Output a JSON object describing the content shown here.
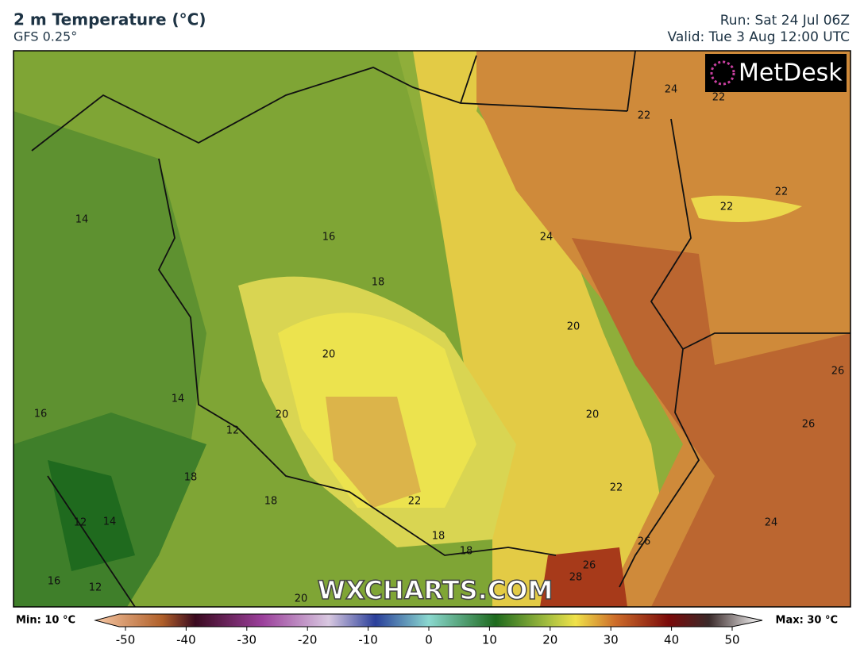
{
  "header": {
    "title": "2 m Temperature (°C)",
    "subtitle": "GFS 0.25°",
    "run": "Run: Sat 24 Jul 06Z",
    "valid": "Valid: Tue 3 Aug 12:00 UTC"
  },
  "map": {
    "logo": "MetDesk",
    "watermark": "WXCHARTS.COM",
    "contour_labels": [
      24,
      22,
      22,
      22,
      22,
      24,
      14,
      16,
      18,
      20,
      20,
      26,
      14,
      16,
      20,
      20,
      12,
      26,
      18,
      18,
      22,
      22,
      12,
      14,
      24,
      18,
      18,
      26,
      26,
      28,
      16,
      12,
      20
    ]
  },
  "colorbar": {
    "min_label": "Min: 10 °C",
    "max_label": "Max: 30 °C",
    "xlim": [
      -55,
      55
    ],
    "ticks": [
      -50,
      -40,
      -30,
      -20,
      -10,
      0,
      10,
      20,
      30,
      40,
      50
    ]
  }
}
